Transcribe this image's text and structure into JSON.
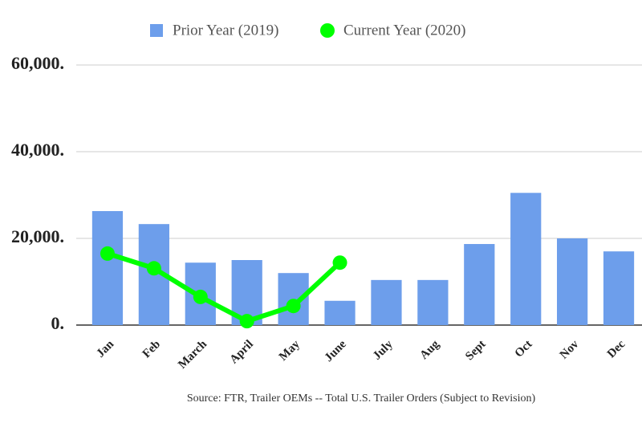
{
  "chart_data": {
    "type": "bar",
    "caption": "Source: FTR, Trailer OEMs -- Total U.S. Trailer Orders (Subject to Revision)",
    "categories": [
      "Jan",
      "Feb",
      "March",
      "April",
      "May",
      "June",
      "July",
      "Aug",
      "Sept",
      "Oct",
      "Nov",
      "Dec"
    ],
    "series": [
      {
        "name": "Prior Year (2019)",
        "type": "bar",
        "color": "#6d9eeb",
        "values": [
          26300,
          23300,
          14400,
          15000,
          12000,
          5600,
          10400,
          10400,
          18700,
          30500,
          20000,
          17000
        ]
      },
      {
        "name": "Current Year (2020)",
        "type": "line",
        "color": "#00ff00",
        "values": [
          16500,
          13100,
          6500,
          900,
          4400,
          14400,
          null,
          null,
          null,
          null,
          null,
          null
        ]
      }
    ],
    "ylim": [
      0,
      60000
    ],
    "yticks": [
      {
        "value": 0,
        "label": "0."
      },
      {
        "value": 20000,
        "label": "20,000."
      },
      {
        "value": 40000,
        "label": "40,000."
      },
      {
        "value": 60000,
        "label": "60,000."
      }
    ],
    "grid": true,
    "legend": "top"
  }
}
